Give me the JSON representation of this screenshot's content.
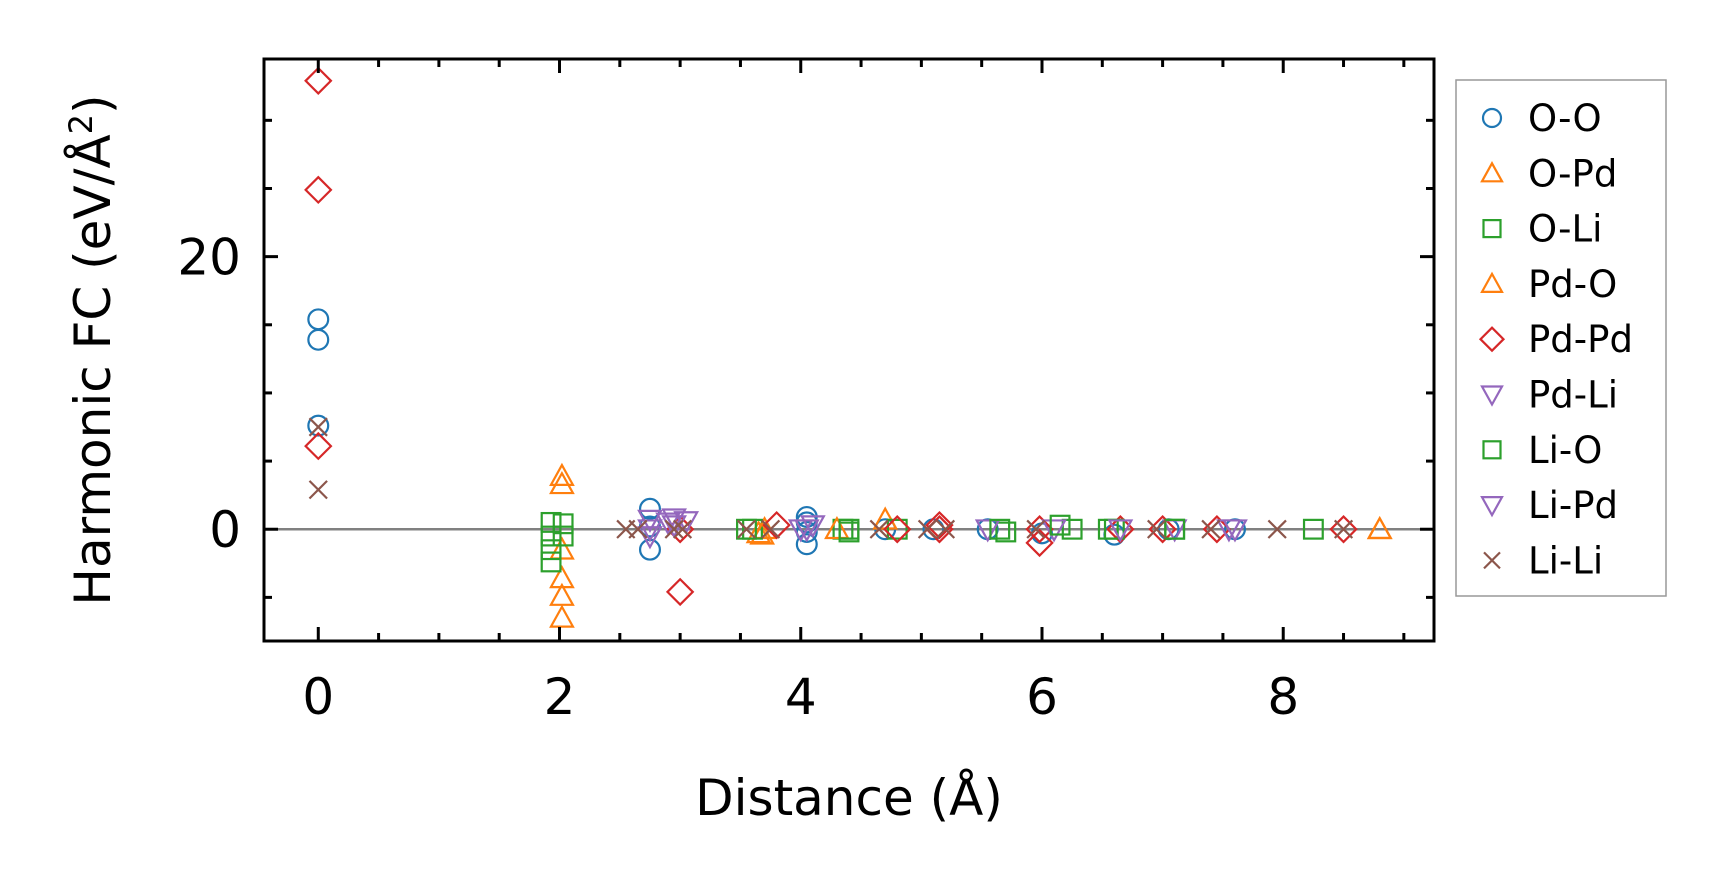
{
  "chart_data": {
    "type": "scatter",
    "xlabel": "Distance (Å)",
    "ylabel_main": "Harmonic FC (eV/Å",
    "ylabel_sup": "2",
    "ylabel_close": ")",
    "xlim": [
      -0.45,
      9.25
    ],
    "ylim": [
      -8.2,
      34.5
    ],
    "xticks": [
      0,
      2,
      4,
      6,
      8
    ],
    "yticks": [
      0,
      20
    ],
    "x_minor_step": 0.5,
    "y_minor_step": 5,
    "zero_line": true,
    "grid": false,
    "legend_position": "right",
    "series": [
      {
        "name": "O-O",
        "marker": "circle",
        "color": "#1f77b4",
        "points": [
          [
            0,
            15.4
          ],
          [
            0,
            13.9
          ],
          [
            0,
            7.6
          ],
          [
            2.75,
            1.5
          ],
          [
            2.75,
            -1.5
          ],
          [
            2.75,
            0.2
          ],
          [
            4.05,
            0.9
          ],
          [
            4.05,
            0.5
          ],
          [
            4.05,
            -1.1
          ],
          [
            4.05,
            -0.2
          ],
          [
            4.7,
            0
          ],
          [
            5.1,
            0
          ],
          [
            5.55,
            0
          ],
          [
            6,
            -0.3
          ],
          [
            6.6,
            -0.4
          ],
          [
            7.05,
            0
          ],
          [
            7.6,
            0
          ]
        ]
      },
      {
        "name": "O-Pd",
        "marker": "triangle-up",
        "color": "#ff7f0e",
        "points": [
          [
            2.02,
            3.9
          ],
          [
            2.02,
            3.3
          ],
          [
            2.02,
            -1.5
          ],
          [
            2.02,
            -3.6
          ],
          [
            2.02,
            -4.9
          ],
          [
            2.02,
            -6.5
          ],
          [
            3.7,
            0
          ],
          [
            3.65,
            -0.3
          ],
          [
            4.7,
            0.7
          ],
          [
            8.8,
            0
          ]
        ]
      },
      {
        "name": "O-Li",
        "marker": "square",
        "color": "#2ca02c",
        "points": [
          [
            1.93,
            0.5
          ],
          [
            1.93,
            -0.5
          ],
          [
            1.93,
            -1.5
          ],
          [
            1.93,
            -2.4
          ],
          [
            2.03,
            0.4
          ],
          [
            2.03,
            -0.5
          ],
          [
            3.6,
            0
          ],
          [
            4.35,
            0
          ],
          [
            4.4,
            -0.2
          ],
          [
            4.8,
            0
          ],
          [
            5.7,
            -0.2
          ],
          [
            6.25,
            0
          ],
          [
            6.55,
            0
          ],
          [
            7.1,
            0
          ],
          [
            8.25,
            0
          ]
        ]
      },
      {
        "name": "Pd-O",
        "marker": "triangle-up",
        "color": "#ff7f0e",
        "points": [
          [
            3.68,
            -0.4
          ],
          [
            4.3,
            0
          ],
          [
            8.8,
            0
          ]
        ]
      },
      {
        "name": "Pd-Pd",
        "marker": "diamond",
        "color": "#d62728",
        "points": [
          [
            0,
            32.9
          ],
          [
            0,
            24.9
          ],
          [
            0,
            6.1
          ],
          [
            3.0,
            -4.6
          ],
          [
            3.0,
            0
          ],
          [
            3.8,
            0.3
          ],
          [
            4.8,
            0
          ],
          [
            5.15,
            0
          ],
          [
            5.15,
            0.3
          ],
          [
            5.98,
            -1.0
          ],
          [
            5.98,
            0
          ],
          [
            6.65,
            0
          ],
          [
            7.0,
            0
          ],
          [
            7.45,
            0
          ],
          [
            8.5,
            0
          ]
        ]
      },
      {
        "name": "Pd-Li",
        "marker": "triangle-down",
        "color": "#9467bd",
        "points": [
          [
            2.75,
            0.7
          ],
          [
            2.75,
            0
          ],
          [
            2.75,
            -0.5
          ],
          [
            2.95,
            0.8
          ],
          [
            2.95,
            0.3
          ],
          [
            3.05,
            0.6
          ],
          [
            4.05,
            0
          ],
          [
            4.1,
            0.3
          ],
          [
            5.55,
            0
          ],
          [
            6.1,
            0
          ],
          [
            7.1,
            0
          ],
          [
            7.6,
            0
          ]
        ]
      },
      {
        "name": "Li-O",
        "marker": "square",
        "color": "#2ca02c",
        "points": [
          [
            3.55,
            0
          ],
          [
            4.4,
            0
          ],
          [
            5.65,
            0
          ],
          [
            6.15,
            0.3
          ],
          [
            6.6,
            0
          ],
          [
            7.1,
            0
          ]
        ]
      },
      {
        "name": "Li-Pd",
        "marker": "triangle-down",
        "color": "#9467bd",
        "points": [
          [
            2.9,
            0.5
          ],
          [
            4.0,
            0
          ],
          [
            6.65,
            0
          ],
          [
            7.55,
            0
          ]
        ]
      },
      {
        "name": "Li-Li",
        "marker": "x",
        "color": "#8c564b",
        "points": [
          [
            0,
            7.5
          ],
          [
            0,
            2.9
          ],
          [
            2.55,
            0
          ],
          [
            2.65,
            0
          ],
          [
            2.95,
            0
          ],
          [
            3.02,
            0
          ],
          [
            3.55,
            0
          ],
          [
            3.75,
            0
          ],
          [
            4.65,
            0
          ],
          [
            5.05,
            0
          ],
          [
            5.2,
            0
          ],
          [
            5.95,
            0
          ],
          [
            6.95,
            0
          ],
          [
            7.4,
            0
          ],
          [
            7.95,
            0
          ],
          [
            8.5,
            0
          ]
        ]
      }
    ]
  }
}
